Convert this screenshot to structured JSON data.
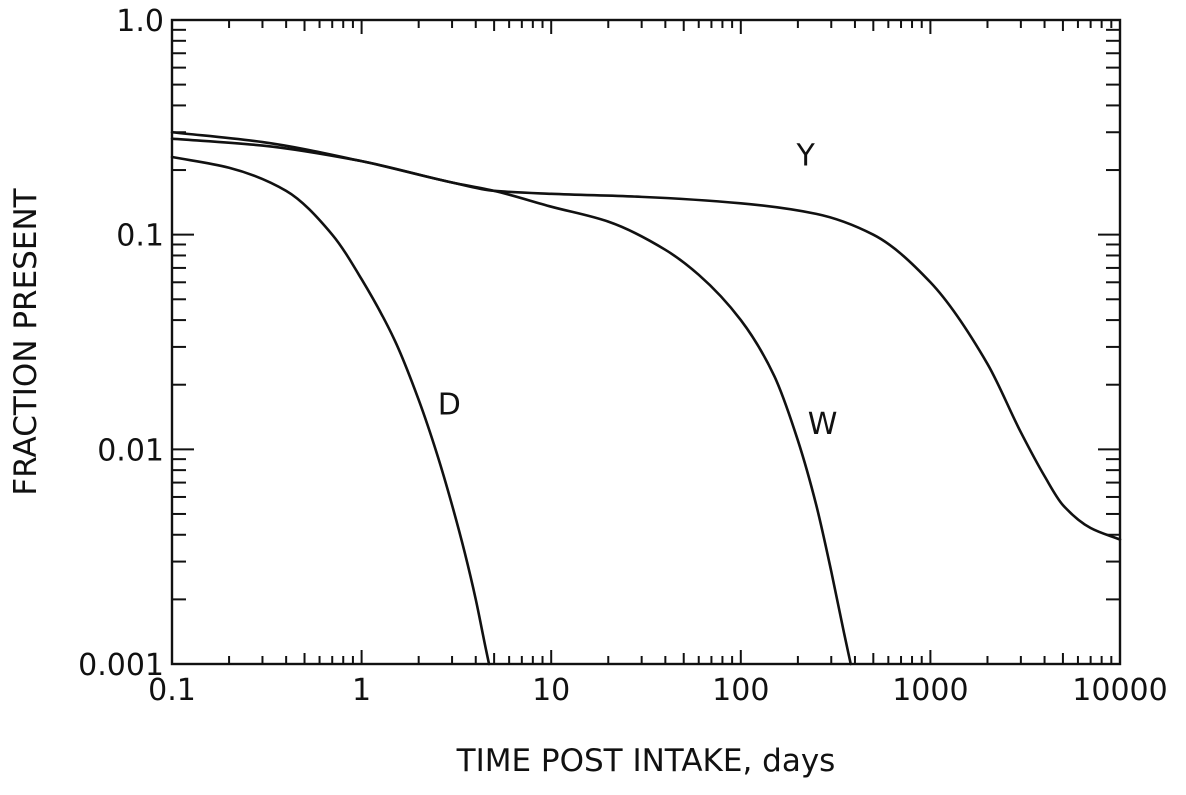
{
  "chart_data": {
    "type": "line",
    "title": "",
    "xlabel": "TIME POST INTAKE, days",
    "ylabel": "FRACTION PRESENT",
    "xscale": "log",
    "yscale": "log",
    "xlim": [
      0.1,
      10000
    ],
    "ylim": [
      0.001,
      1.0
    ],
    "xticks": [
      0.1,
      1,
      10,
      100,
      1000,
      10000
    ],
    "xtick_labels": [
      "0.1",
      "1",
      "10",
      "100",
      "1000",
      "10000"
    ],
    "yticks": [
      0.001,
      0.01,
      0.1,
      1.0
    ],
    "ytick_labels": [
      "0.001",
      "0.01",
      "0.1",
      "1.0"
    ],
    "grid": false,
    "legend": "none",
    "series": [
      {
        "name": "D",
        "x": [
          0.1,
          0.2,
          0.4,
          0.7,
          1.0,
          1.5,
          2.0,
          2.5,
          3.0,
          3.5,
          4.0,
          4.5,
          4.7
        ],
        "y": [
          0.23,
          0.205,
          0.16,
          0.1,
          0.062,
          0.032,
          0.017,
          0.0095,
          0.0055,
          0.0033,
          0.002,
          0.0012,
          0.001
        ]
      },
      {
        "name": "W",
        "x": [
          0.1,
          0.3,
          1,
          3,
          5,
          10,
          20,
          40,
          60,
          100,
          150,
          200,
          250,
          300,
          350,
          380
        ],
        "y": [
          0.3,
          0.27,
          0.22,
          0.175,
          0.16,
          0.135,
          0.115,
          0.085,
          0.065,
          0.04,
          0.022,
          0.011,
          0.0055,
          0.0027,
          0.0014,
          0.001
        ]
      },
      {
        "name": "Y",
        "x": [
          0.1,
          0.3,
          1,
          3,
          5,
          10,
          30,
          100,
          250,
          500,
          1000,
          2000,
          3000,
          4000,
          5000,
          7000,
          10000
        ],
        "y": [
          0.28,
          0.26,
          0.22,
          0.175,
          0.16,
          0.155,
          0.15,
          0.14,
          0.125,
          0.1,
          0.06,
          0.025,
          0.012,
          0.0075,
          0.0055,
          0.0043,
          0.0038
        ]
      }
    ],
    "annotations": [
      "D",
      "W",
      "Y"
    ],
    "colors": {
      "line": "#111111",
      "background": "#ffffff"
    }
  }
}
